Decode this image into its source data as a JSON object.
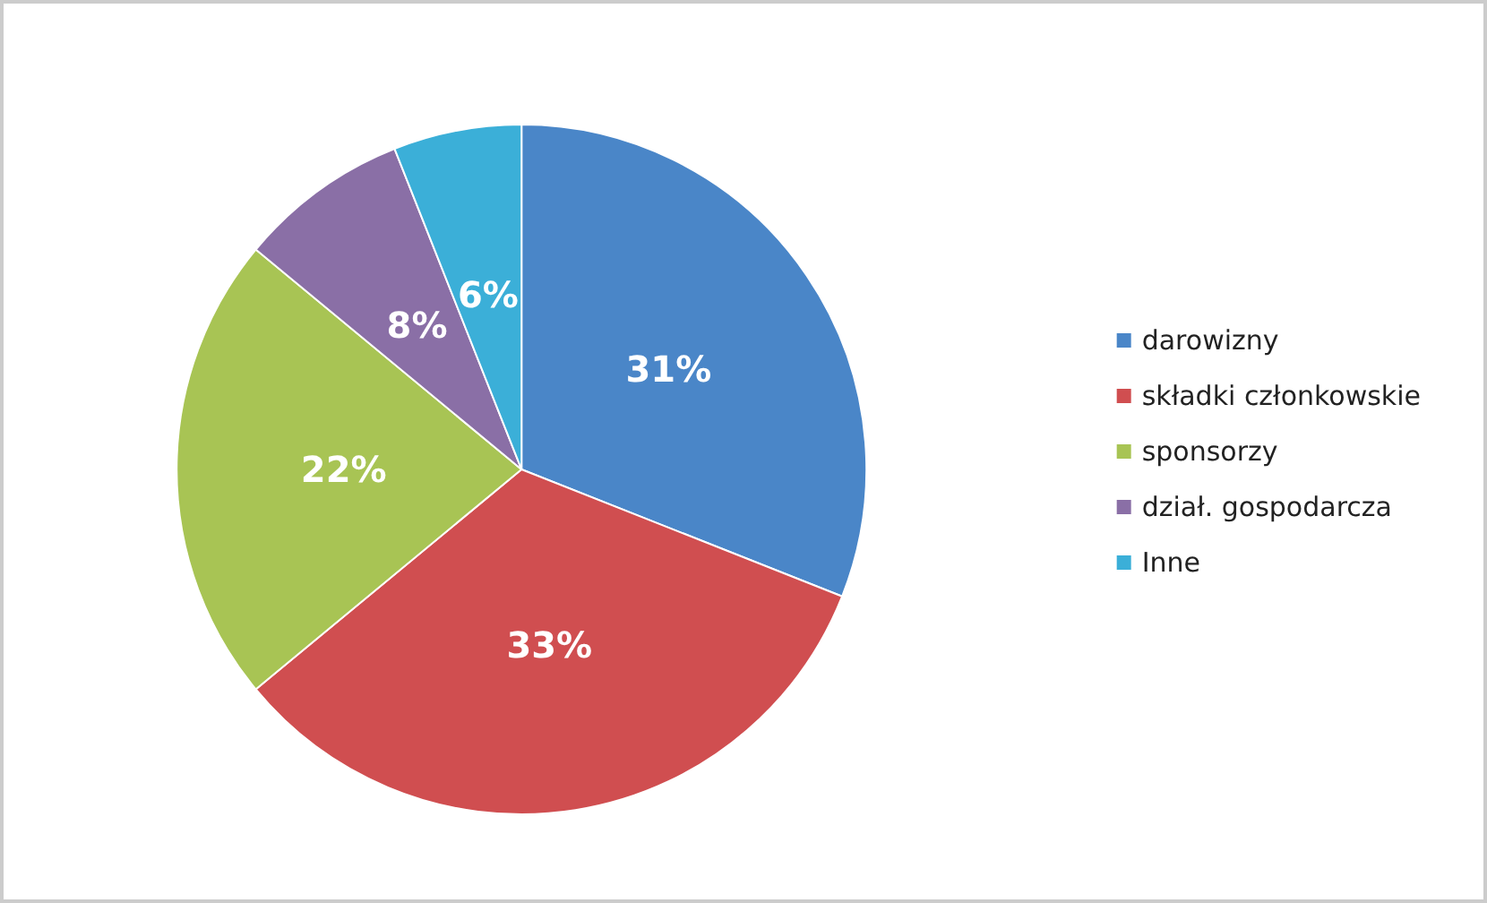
{
  "chart_data": {
    "type": "pie",
    "categories": [
      "darowizny",
      "składki członkowskie",
      "sponsorzy",
      "dział. gospodarcza",
      "Inne"
    ],
    "values": [
      31,
      33,
      22,
      8,
      6
    ],
    "colors": [
      "#4a86c8",
      "#d04e50",
      "#a8c454",
      "#8a6fa6",
      "#3bafd8"
    ],
    "value_labels": [
      "31%",
      "33%",
      "22%",
      "8%",
      "6%"
    ],
    "legend": "right"
  }
}
